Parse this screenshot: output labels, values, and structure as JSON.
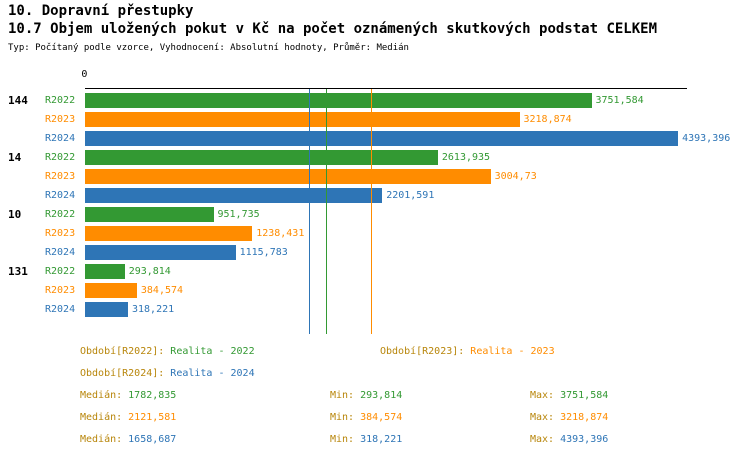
{
  "header": {
    "title": "10. Dopravní přestupky",
    "subtitle": "10.7 Objem uložených pokut v Kč na počet oznámených skutkových podstat CELKEM",
    "meta": "Typ: Počítaný podle vzorce, Vyhodnocení: Absolutní hodnoty, Průměr: Medián"
  },
  "ui": {
    "background": "#FFFFFF",
    "axis_color": "#000000",
    "label_gold": "#B8860B"
  },
  "chart_data": {
    "type": "bar",
    "orientation": "horizontal",
    "title": "10.7 Objem uložených pokut v Kč na počet oznámených skutkových podstat CELKEM",
    "x_zero_label": "0",
    "xlim": [
      0,
      4600
    ],
    "grid": false,
    "legend_position": "bottom",
    "categories": [
      "144",
      "14",
      "10",
      "131"
    ],
    "series": [
      {
        "name": "R2022",
        "color": "#339933",
        "values": [
          3751.584,
          2613.935,
          951.735,
          293.814
        ],
        "value_labels": [
          "3751,584",
          "2613,935",
          "951,735",
          "293,814"
        ],
        "median": 1782.835
      },
      {
        "name": "R2023",
        "color": "#FF8C00",
        "values": [
          3218.874,
          3004.73,
          1238.431,
          384.574
        ],
        "value_labels": [
          "3218,874",
          "3004,73",
          "1238,431",
          "384,574"
        ],
        "median": 2121.581
      },
      {
        "name": "R2024",
        "color": "#2E75B6",
        "values": [
          4393.396,
          2201.591,
          1115.783,
          318.221
        ],
        "value_labels": [
          "4393,396",
          "2201,591",
          "1115,783",
          "318,221"
        ],
        "median": 1658.687
      }
    ]
  },
  "legend": {
    "items": [
      {
        "key": "Období[R2022]:",
        "value": "Realita - 2022"
      },
      {
        "key": "Období[R2023]:",
        "value": "Realita - 2023"
      },
      {
        "key": "Období[R2024]:",
        "value": "Realita - 2024"
      }
    ]
  },
  "stats": {
    "labels": {
      "median": "Medián:",
      "min": "Min:",
      "max": "Max:"
    },
    "rows": [
      {
        "median": "1782,835",
        "min": "293,814",
        "max": "3751,584"
      },
      {
        "median": "2121,581",
        "min": "384,574",
        "max": "3218,874"
      },
      {
        "median": "1658,687",
        "min": "318,221",
        "max": "4393,396"
      }
    ]
  }
}
